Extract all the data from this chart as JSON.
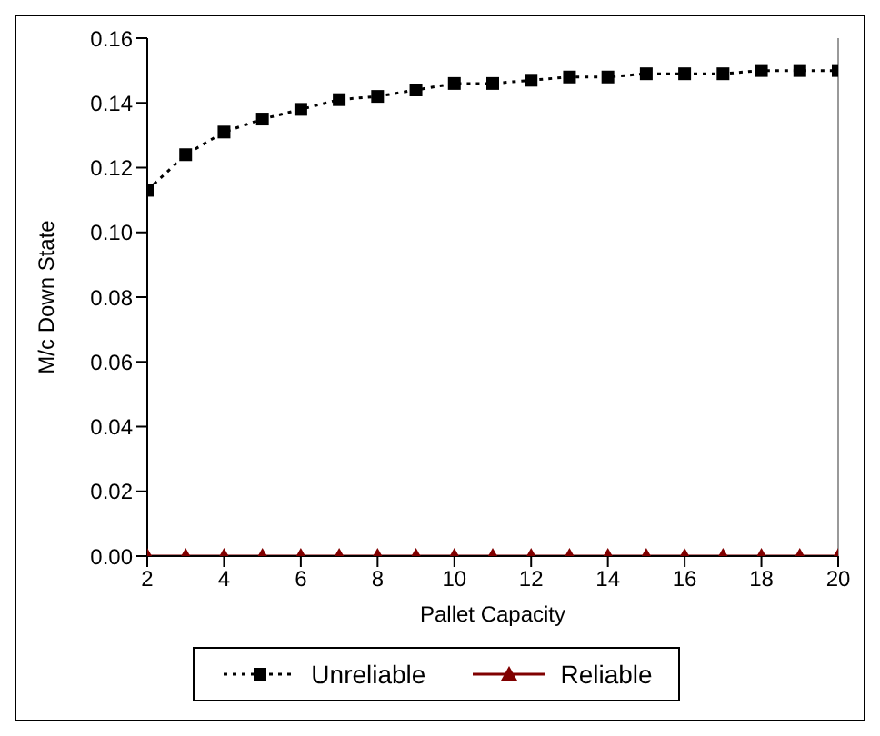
{
  "chart_data": {
    "type": "line",
    "xlabel": "Pallet Capacity",
    "ylabel": "M/c Down State",
    "x": [
      2,
      3,
      4,
      5,
      6,
      7,
      8,
      9,
      10,
      11,
      12,
      13,
      14,
      15,
      16,
      17,
      18,
      19,
      20
    ],
    "series": [
      {
        "name": "Unreliable",
        "color": "#000000",
        "marker": "square",
        "line_style": "dotted",
        "values": [
          0.113,
          0.124,
          0.131,
          0.135,
          0.138,
          0.141,
          0.142,
          0.144,
          0.146,
          0.146,
          0.147,
          0.148,
          0.148,
          0.149,
          0.149,
          0.149,
          0.15,
          0.15,
          0.15
        ]
      },
      {
        "name": "Reliable",
        "color": "#800000",
        "marker": "triangle",
        "line_style": "solid",
        "values": [
          0,
          0,
          0,
          0,
          0,
          0,
          0,
          0,
          0,
          0,
          0,
          0,
          0,
          0,
          0,
          0,
          0,
          0,
          0
        ]
      }
    ],
    "xlim": [
      2,
      20
    ],
    "xticks": [
      2,
      4,
      6,
      8,
      10,
      12,
      14,
      16,
      18,
      20
    ],
    "ylim": [
      0,
      0.16
    ],
    "yticks": [
      {
        "value": 0,
        "label": "0.00"
      },
      0.02,
      0.04,
      0.06,
      0.08,
      {
        "value": 0.1,
        "label": "0.10"
      },
      0.12,
      0.14,
      0.16
    ],
    "legend": "bottom"
  }
}
